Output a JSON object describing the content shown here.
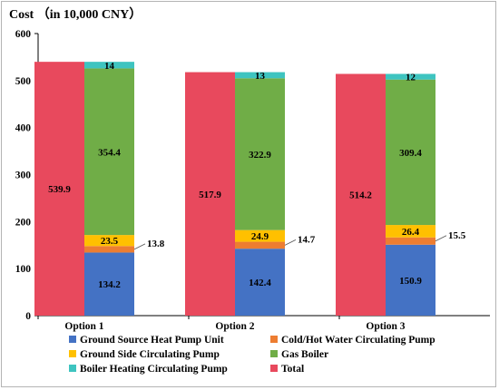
{
  "chart_data": {
    "type": "bar",
    "stacked": true,
    "title": "Cost （in 10,000 CNY）",
    "xlabel": "",
    "ylabel": "",
    "ylim": [
      0,
      600
    ],
    "yticks": [
      "0",
      "100",
      "200",
      "300",
      "400",
      "500",
      "600"
    ],
    "grid": false,
    "legend_position": "bottom",
    "categories": [
      "Option 1",
      "Option 2",
      "Option 3"
    ],
    "total": {
      "name": "Total",
      "color": "#e8495d",
      "values": [
        539.9,
        517.9,
        514.2
      ],
      "labels": [
        "539.9",
        "517.9",
        "514.2"
      ]
    },
    "series": [
      {
        "name": "Ground Source Heat Pump Unit",
        "color": "#4472c4",
        "values": [
          134.2,
          142.4,
          150.9
        ],
        "labels": [
          "134.2",
          "142.4",
          "150.9"
        ]
      },
      {
        "name": "Cold/Hot Water Circulating Pump",
        "color": "#ed7d31",
        "values": [
          13.8,
          14.7,
          15.5
        ],
        "labels": [
          "13.8",
          "14.7",
          "15.5"
        ]
      },
      {
        "name": "Ground Side Circulating Pump",
        "color": "#ffc000",
        "values": [
          23.5,
          24.9,
          26.4
        ],
        "labels": [
          "23.5",
          "24.9",
          "26.4"
        ]
      },
      {
        "name": "Gas Boiler",
        "color": "#70ad47",
        "values": [
          354.4,
          322.9,
          309.4
        ],
        "labels": [
          "354.4",
          "322.9",
          "309.4"
        ]
      },
      {
        "name": "Boiler Heating Circulating Pump",
        "color": "#3ec4c0",
        "values": [
          14,
          13,
          12
        ],
        "labels": [
          "14",
          "13",
          "12"
        ]
      }
    ],
    "legend": [
      {
        "name": "Ground Source Heat Pump Unit",
        "color": "#4472c4"
      },
      {
        "name": "Cold/Hot Water Circulating Pump",
        "color": "#ed7d31"
      },
      {
        "name": "Ground Side Circulating Pump",
        "color": "#ffc000"
      },
      {
        "name": "Gas Boiler",
        "color": "#70ad47"
      },
      {
        "name": "Boiler Heating Circulating Pump",
        "color": "#3ec4c0"
      },
      {
        "name": "Total",
        "color": "#e8495d"
      }
    ]
  }
}
